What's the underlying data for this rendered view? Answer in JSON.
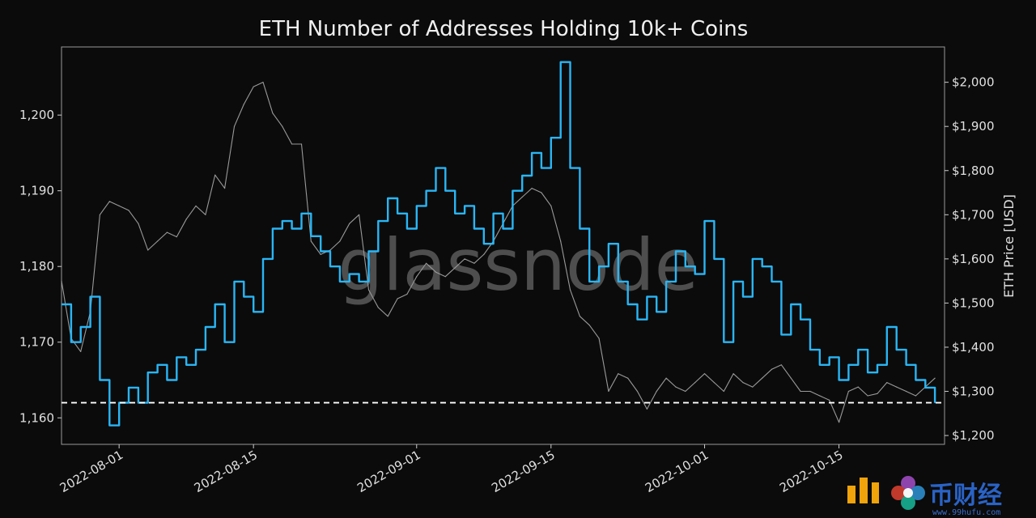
{
  "chart_data": {
    "type": "line",
    "title": "ETH Number of Addresses Holding 10k+ Coins",
    "xlabel": "",
    "ylabel_left": "",
    "ylabel_right": "ETH Price [USD]",
    "x_range": [
      "2022-07-26",
      "2022-10-26"
    ],
    "x_tick_labels": [
      "2022-08-01",
      "2022-08-15",
      "2022-09-01",
      "2022-09-15",
      "2022-10-01",
      "2022-10-15"
    ],
    "y_left_range": [
      1156.5,
      1209
    ],
    "y_left_tick_labels": [
      "1,160",
      "1,170",
      "1,180",
      "1,190",
      "1,200"
    ],
    "y_right_range": [
      1180,
      2080
    ],
    "y_right_tick_labels": [
      "$1,200",
      "$1,300",
      "$1,400",
      "$1,500",
      "$1,600",
      "$1,700",
      "$1,800",
      "$1,900",
      "$2,000"
    ],
    "reference_line": {
      "axis": "left",
      "value": 1162,
      "style": "dashed"
    },
    "series": [
      {
        "axis": "left",
        "color": "#29b6f6",
        "points": [
          [
            "2022-07-26",
            1175
          ],
          [
            "2022-07-27",
            1170
          ],
          [
            "2022-07-28",
            1172
          ],
          [
            "2022-07-29",
            1176
          ],
          [
            "2022-07-30",
            1165
          ],
          [
            "2022-07-31",
            1159
          ],
          [
            "2022-08-01",
            1162
          ],
          [
            "2022-08-02",
            1164
          ],
          [
            "2022-08-03",
            1162
          ],
          [
            "2022-08-04",
            1166
          ],
          [
            "2022-08-05",
            1167
          ],
          [
            "2022-08-06",
            1165
          ],
          [
            "2022-08-07",
            1168
          ],
          [
            "2022-08-08",
            1167
          ],
          [
            "2022-08-09",
            1169
          ],
          [
            "2022-08-10",
            1172
          ],
          [
            "2022-08-11",
            1175
          ],
          [
            "2022-08-12",
            1170
          ],
          [
            "2022-08-13",
            1178
          ],
          [
            "2022-08-14",
            1176
          ],
          [
            "2022-08-15",
            1174
          ],
          [
            "2022-08-16",
            1181
          ],
          [
            "2022-08-17",
            1185
          ],
          [
            "2022-08-18",
            1186
          ],
          [
            "2022-08-19",
            1185
          ],
          [
            "2022-08-20",
            1187
          ],
          [
            "2022-08-21",
            1184
          ],
          [
            "2022-08-22",
            1182
          ],
          [
            "2022-08-23",
            1180
          ],
          [
            "2022-08-24",
            1178
          ],
          [
            "2022-08-25",
            1179
          ],
          [
            "2022-08-26",
            1178
          ],
          [
            "2022-08-27",
            1182
          ],
          [
            "2022-08-28",
            1186
          ],
          [
            "2022-08-29",
            1189
          ],
          [
            "2022-08-30",
            1187
          ],
          [
            "2022-08-31",
            1185
          ],
          [
            "2022-09-01",
            1188
          ],
          [
            "2022-09-02",
            1190
          ],
          [
            "2022-09-03",
            1193
          ],
          [
            "2022-09-04",
            1190
          ],
          [
            "2022-09-05",
            1187
          ],
          [
            "2022-09-06",
            1188
          ],
          [
            "2022-09-07",
            1185
          ],
          [
            "2022-09-08",
            1183
          ],
          [
            "2022-09-09",
            1187
          ],
          [
            "2022-09-10",
            1185
          ],
          [
            "2022-09-11",
            1190
          ],
          [
            "2022-09-12",
            1192
          ],
          [
            "2022-09-13",
            1195
          ],
          [
            "2022-09-14",
            1193
          ],
          [
            "2022-09-15",
            1197
          ],
          [
            "2022-09-16",
            1207
          ],
          [
            "2022-09-17",
            1193
          ],
          [
            "2022-09-18",
            1185
          ],
          [
            "2022-09-19",
            1178
          ],
          [
            "2022-09-20",
            1180
          ],
          [
            "2022-09-21",
            1183
          ],
          [
            "2022-09-22",
            1178
          ],
          [
            "2022-09-23",
            1175
          ],
          [
            "2022-09-24",
            1173
          ],
          [
            "2022-09-25",
            1176
          ],
          [
            "2022-09-26",
            1174
          ],
          [
            "2022-09-27",
            1178
          ],
          [
            "2022-09-28",
            1182
          ],
          [
            "2022-09-29",
            1180
          ],
          [
            "2022-09-30",
            1179
          ],
          [
            "2022-10-01",
            1186
          ],
          [
            "2022-10-02",
            1181
          ],
          [
            "2022-10-03",
            1170
          ],
          [
            "2022-10-04",
            1178
          ],
          [
            "2022-10-05",
            1176
          ],
          [
            "2022-10-06",
            1181
          ],
          [
            "2022-10-07",
            1180
          ],
          [
            "2022-10-08",
            1178
          ],
          [
            "2022-10-09",
            1171
          ],
          [
            "2022-10-10",
            1175
          ],
          [
            "2022-10-11",
            1173
          ],
          [
            "2022-10-12",
            1169
          ],
          [
            "2022-10-13",
            1167
          ],
          [
            "2022-10-14",
            1168
          ],
          [
            "2022-10-15",
            1165
          ],
          [
            "2022-10-16",
            1167
          ],
          [
            "2022-10-17",
            1169
          ],
          [
            "2022-10-18",
            1166
          ],
          [
            "2022-10-19",
            1167
          ],
          [
            "2022-10-20",
            1172
          ],
          [
            "2022-10-21",
            1169
          ],
          [
            "2022-10-22",
            1167
          ],
          [
            "2022-10-23",
            1165
          ],
          [
            "2022-10-24",
            1164
          ],
          [
            "2022-10-25",
            1162
          ]
        ]
      },
      {
        "axis": "right",
        "name": "ETH Price [USD]",
        "color": "#9a9a9a",
        "points": [
          [
            "2022-07-26",
            1550
          ],
          [
            "2022-07-27",
            1420
          ],
          [
            "2022-07-28",
            1390
          ],
          [
            "2022-07-29",
            1480
          ],
          [
            "2022-07-30",
            1700
          ],
          [
            "2022-07-31",
            1730
          ],
          [
            "2022-08-01",
            1720
          ],
          [
            "2022-08-02",
            1710
          ],
          [
            "2022-08-03",
            1680
          ],
          [
            "2022-08-04",
            1620
          ],
          [
            "2022-08-05",
            1640
          ],
          [
            "2022-08-06",
            1660
          ],
          [
            "2022-08-07",
            1650
          ],
          [
            "2022-08-08",
            1690
          ],
          [
            "2022-08-09",
            1720
          ],
          [
            "2022-08-10",
            1700
          ],
          [
            "2022-08-11",
            1790
          ],
          [
            "2022-08-12",
            1760
          ],
          [
            "2022-08-13",
            1900
          ],
          [
            "2022-08-14",
            1950
          ],
          [
            "2022-08-15",
            1990
          ],
          [
            "2022-08-16",
            2000
          ],
          [
            "2022-08-17",
            1930
          ],
          [
            "2022-08-18",
            1900
          ],
          [
            "2022-08-19",
            1860
          ],
          [
            "2022-08-20",
            1860
          ],
          [
            "2022-08-21",
            1640
          ],
          [
            "2022-08-22",
            1610
          ],
          [
            "2022-08-23",
            1620
          ],
          [
            "2022-08-24",
            1640
          ],
          [
            "2022-08-25",
            1680
          ],
          [
            "2022-08-26",
            1700
          ],
          [
            "2022-08-27",
            1530
          ],
          [
            "2022-08-28",
            1490
          ],
          [
            "2022-08-29",
            1470
          ],
          [
            "2022-08-30",
            1510
          ],
          [
            "2022-08-31",
            1520
          ],
          [
            "2022-09-01",
            1560
          ],
          [
            "2022-09-02",
            1590
          ],
          [
            "2022-09-03",
            1570
          ],
          [
            "2022-09-04",
            1560
          ],
          [
            "2022-09-05",
            1580
          ],
          [
            "2022-09-06",
            1600
          ],
          [
            "2022-09-07",
            1590
          ],
          [
            "2022-09-08",
            1610
          ],
          [
            "2022-09-09",
            1640
          ],
          [
            "2022-09-10",
            1680
          ],
          [
            "2022-09-11",
            1720
          ],
          [
            "2022-09-12",
            1740
          ],
          [
            "2022-09-13",
            1760
          ],
          [
            "2022-09-14",
            1750
          ],
          [
            "2022-09-15",
            1720
          ],
          [
            "2022-09-16",
            1640
          ],
          [
            "2022-09-17",
            1530
          ],
          [
            "2022-09-18",
            1470
          ],
          [
            "2022-09-19",
            1450
          ],
          [
            "2022-09-20",
            1420
          ],
          [
            "2022-09-21",
            1300
          ],
          [
            "2022-09-22",
            1340
          ],
          [
            "2022-09-23",
            1330
          ],
          [
            "2022-09-24",
            1300
          ],
          [
            "2022-09-25",
            1260
          ],
          [
            "2022-09-26",
            1300
          ],
          [
            "2022-09-27",
            1330
          ],
          [
            "2022-09-28",
            1310
          ],
          [
            "2022-09-29",
            1300
          ],
          [
            "2022-09-30",
            1320
          ],
          [
            "2022-10-01",
            1340
          ],
          [
            "2022-10-02",
            1320
          ],
          [
            "2022-10-03",
            1300
          ],
          [
            "2022-10-04",
            1340
          ],
          [
            "2022-10-05",
            1320
          ],
          [
            "2022-10-06",
            1310
          ],
          [
            "2022-10-07",
            1330
          ],
          [
            "2022-10-08",
            1350
          ],
          [
            "2022-10-09",
            1360
          ],
          [
            "2022-10-10",
            1330
          ],
          [
            "2022-10-11",
            1300
          ],
          [
            "2022-10-12",
            1300
          ],
          [
            "2022-10-13",
            1290
          ],
          [
            "2022-10-14",
            1280
          ],
          [
            "2022-10-15",
            1230
          ],
          [
            "2022-10-16",
            1300
          ],
          [
            "2022-10-17",
            1310
          ],
          [
            "2022-10-18",
            1290
          ],
          [
            "2022-10-19",
            1295
          ],
          [
            "2022-10-20",
            1320
          ],
          [
            "2022-10-21",
            1310
          ],
          [
            "2022-10-22",
            1300
          ],
          [
            "2022-10-23",
            1290
          ],
          [
            "2022-10-24",
            1310
          ],
          [
            "2022-10-25",
            1330
          ]
        ]
      }
    ],
    "watermark": "glassnode",
    "grid": false,
    "legend": "none"
  },
  "badge": {
    "text": "币财经",
    "url": "www.99hufu.com",
    "colors": {
      "mark": "#f0a30a",
      "text": "#2a63c7",
      "flower": "#9b59d0"
    }
  }
}
